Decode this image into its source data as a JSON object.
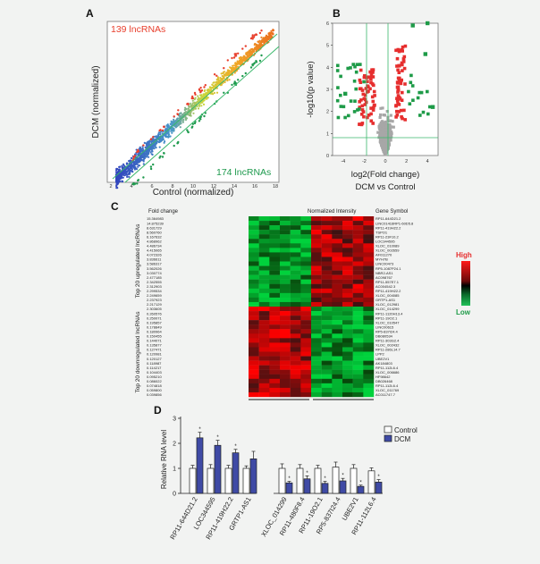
{
  "panels": {
    "a": {
      "letter": "A",
      "top_label": "139 lncRNAs",
      "bottom_label": "174 lncRNAs",
      "xlabel": "Control (normalized)",
      "ylabel": "DCM (normalized)",
      "ticks": [
        "2",
        "4",
        "6",
        "8",
        "10",
        "12",
        "14",
        "16",
        "18"
      ],
      "colors": {
        "up": "#e8402e",
        "down": "#1f9a4e",
        "line": "#3ab86b"
      }
    },
    "b": {
      "letter": "B",
      "xlabel": "log2(Fold change)",
      "ylabel": "-log10(p value)",
      "subtitle": "DCM vs Control",
      "xticks": [
        "-4",
        "-2",
        "0",
        "2",
        "4"
      ],
      "yticks": [
        "0",
        "1",
        "2",
        "3",
        "4",
        "5",
        "6"
      ],
      "colors": {
        "up": "#e62e2e",
        "down": "#1e9b48",
        "ns": "#a7a7a7"
      }
    },
    "c": {
      "letter": "C",
      "col_fold": "Fold change",
      "col_intensity": "Normalized Intensity",
      "col_gene": "Gene Symbol",
      "group_up": "Top 20 upregulated lncRNAs",
      "group_down": "Top 20 downregulated lncRNAs",
      "legend_high": "High",
      "legend_low": "Low",
      "fold_changes": [
        "15.364983",
        "14.875239",
        "8.631729",
        "8.560760",
        "6.167632",
        "4.868962",
        "4.486734",
        "4.415065",
        "4.072326",
        "3.836611",
        "3.586317",
        "3.562026",
        "3.030774",
        "2.477185",
        "2.342555",
        "2.312903",
        "2.299534",
        "2.249659",
        "2.237923",
        "2.217129",
        "2.303605",
        "0.260576",
        "0.250071",
        "0.195857",
        "0.178849",
        "0.180964",
        "0.150455",
        "0.144071",
        "0.135877",
        "0.127471",
        "0.120981",
        "0.120127",
        "0.118987",
        "0.114217",
        "0.104403",
        "0.095210",
        "0.086022",
        "0.074818",
        "0.059800",
        "0.039856"
      ],
      "genes": [
        "RP11-644D21.2",
        "LINC01416RP1-60D5.8",
        "RP11-419H22.2",
        "TSPO1",
        "RP11-23F10.2",
        "LOC344595",
        "XLOC_010089",
        "XLOC_002659",
        "AF011270",
        "MYH7B",
        "LINC00473",
        "RP5-1087P24.1",
        "NBR2-AS1",
        "AC098767",
        "RP11-557E7.1",
        "AC004542.3",
        "RP11-419H22.2",
        "XLOC_004085",
        "GRTP1-AS1",
        "XLOC_012981",
        "XLOC_014299",
        "RP11-1120H13.4",
        "RP11-19O2.1",
        "XLOC_010547",
        "LINC00615",
        "RP5-837I24.4",
        "DB080534",
        "RP11-303G2.4",
        "XLOC_002432",
        "RP11-286L14.7",
        "LPP2",
        "UBE2V1",
        "AK184803",
        "RP11-112L6.4",
        "XLOC_006686",
        "HF98642",
        "DB026468",
        "RP11-112L6.4",
        "XLOC_011769",
        "AC011747.7"
      ]
    },
    "d": {
      "letter": "D",
      "ylabel": "Relative RNA level",
      "yticks": [
        "0",
        "1",
        "2",
        "3"
      ],
      "legend_control": "Control",
      "legend_dcm": "DCM",
      "star": "*"
    }
  },
  "chart_data": [
    {
      "type": "bar",
      "title": "",
      "ylabel": "Relative RNA level",
      "ylim": [
        0,
        3
      ],
      "categories": [
        "RP11-644D21.2",
        "LOC344595",
        "RP11-419H22.2",
        "GRTP1-AS1",
        "XLOC_014299",
        "RP11-480F8.4",
        "RP11-19O2.1",
        "RP5-837I24.4",
        "UBE2V1",
        "RP11-112L6.4"
      ],
      "series": [
        {
          "name": "Control",
          "values": [
            1.0,
            1.0,
            1.0,
            1.0,
            1.0,
            1.0,
            1.0,
            1.05,
            1.0,
            0.9
          ],
          "errors": [
            0.12,
            0.15,
            0.12,
            0.1,
            0.18,
            0.15,
            0.12,
            0.2,
            0.15,
            0.12
          ]
        },
        {
          "name": "DCM",
          "values": [
            2.22,
            1.92,
            1.62,
            1.38,
            0.42,
            0.58,
            0.4,
            0.5,
            0.28,
            0.45
          ],
          "errors": [
            0.22,
            0.2,
            0.14,
            0.3,
            0.06,
            0.12,
            0.08,
            0.1,
            0.05,
            0.1
          ]
        }
      ],
      "significant_dcm": [
        true,
        true,
        true,
        false,
        true,
        true,
        true,
        true,
        true,
        true
      ]
    }
  ]
}
